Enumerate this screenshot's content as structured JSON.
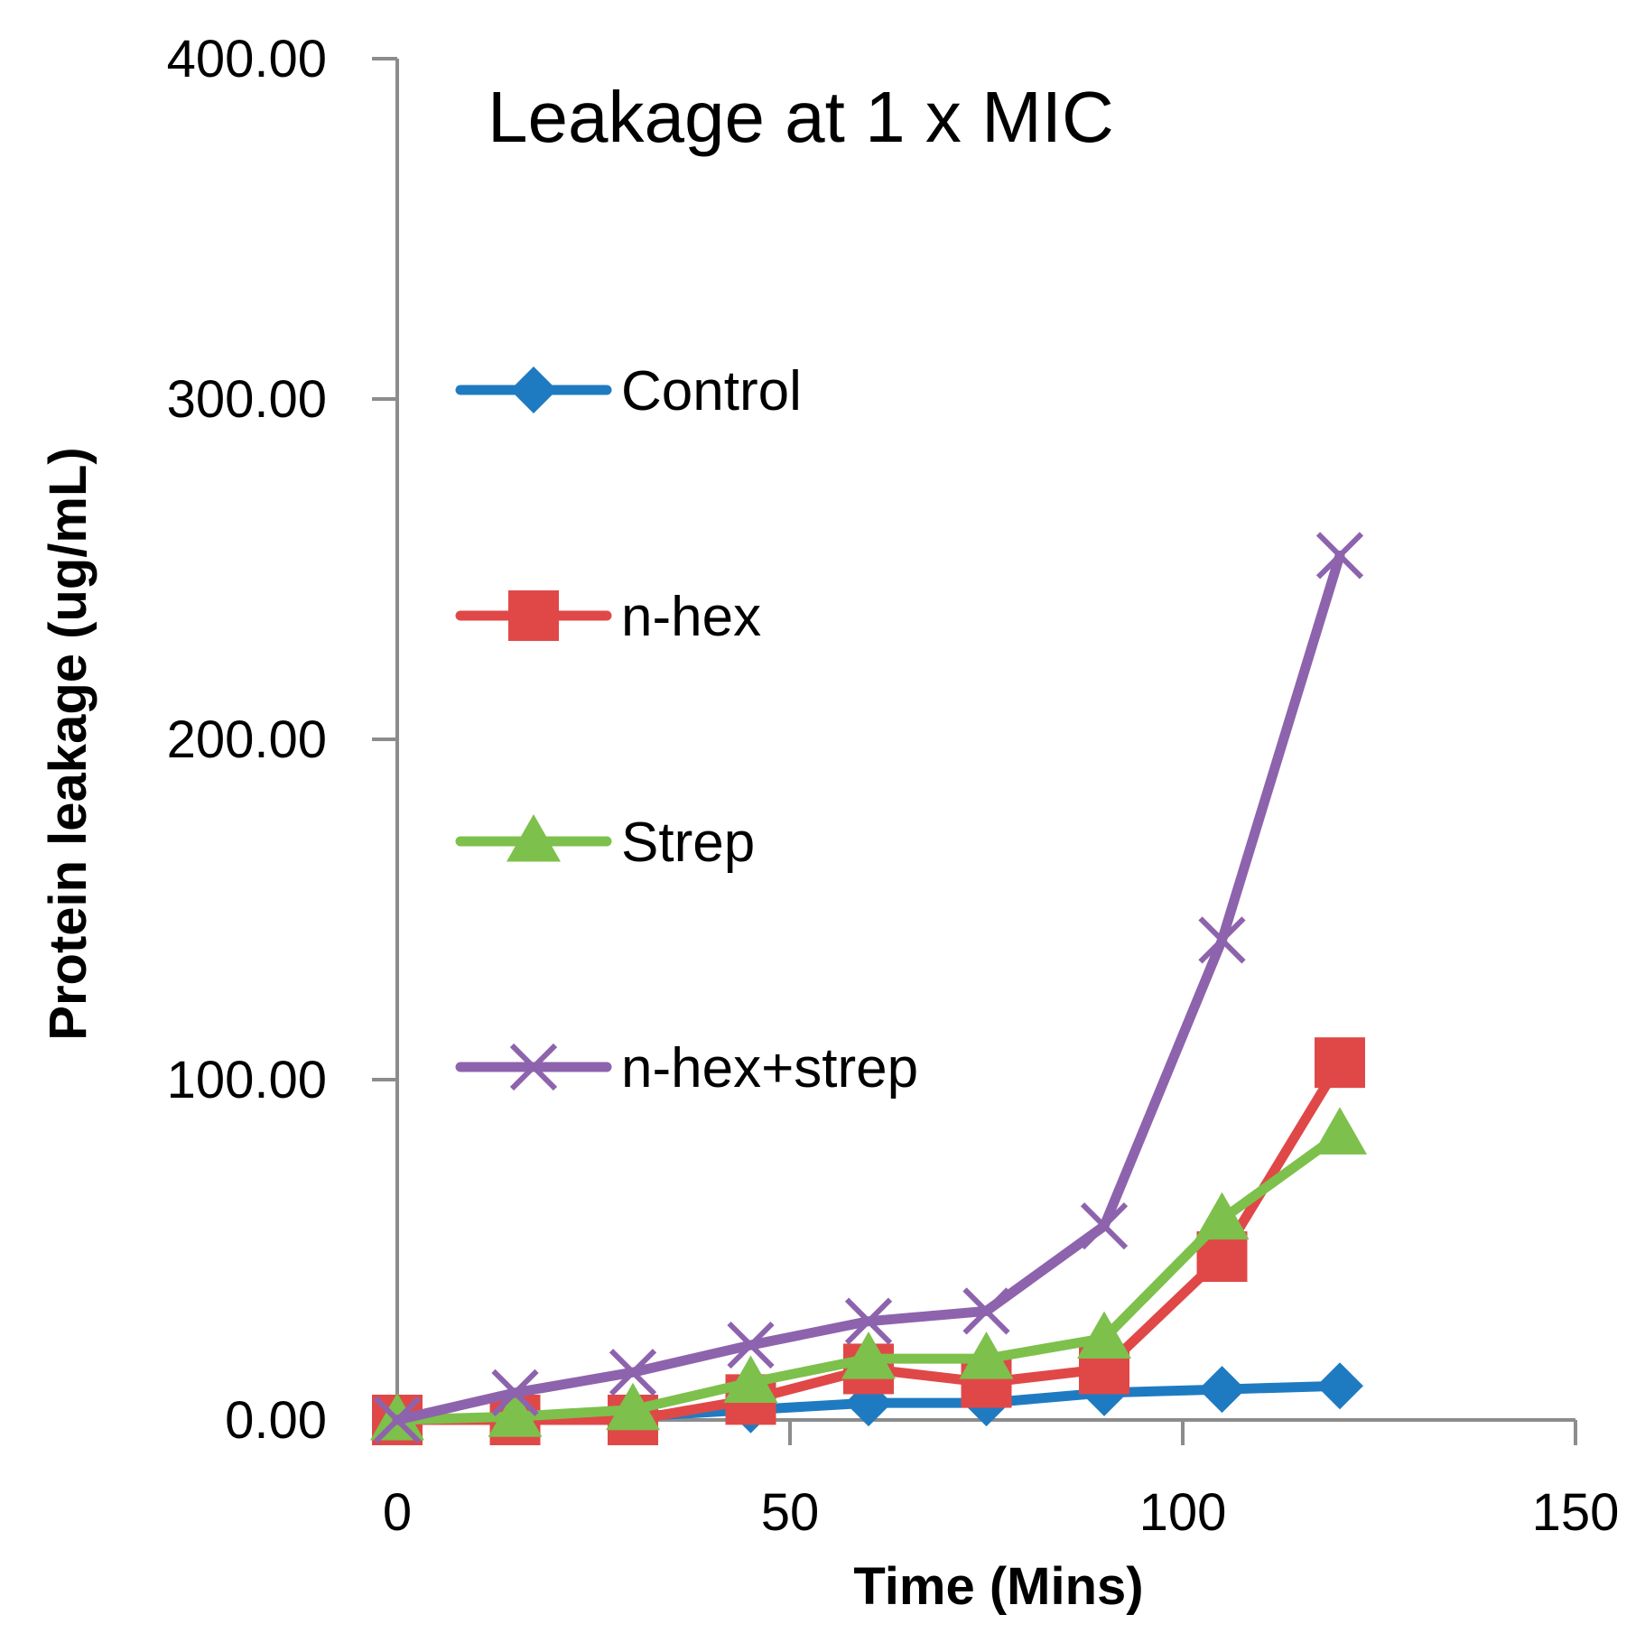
{
  "chart_data": {
    "type": "line",
    "title": "Leakage at 1 x MIC",
    "xlabel": "Time (Mins)",
    "ylabel": "Protein leakage (ug/mL)",
    "xlim": [
      0,
      150
    ],
    "ylim": [
      0,
      400
    ],
    "x_ticks": [
      0,
      50,
      100,
      150
    ],
    "x_tick_labels": [
      "0",
      "50",
      "100",
      "150"
    ],
    "y_ticks": [
      0,
      100,
      200,
      300,
      400
    ],
    "y_tick_labels": [
      "0.00",
      "100.00",
      "200.00",
      "300.00",
      "400.00"
    ],
    "grid": false,
    "legend_position": "left-inside",
    "series": [
      {
        "name": "Control",
        "color": "#1f7bc1",
        "marker": "diamond",
        "x": [
          0,
          15,
          30,
          45,
          60,
          75,
          90,
          105,
          120
        ],
        "y": [
          0,
          0,
          1,
          3,
          5,
          5,
          8,
          9,
          10
        ]
      },
      {
        "name": "n-hex",
        "color": "#e04848",
        "marker": "square",
        "x": [
          0,
          15,
          30,
          45,
          60,
          75,
          90,
          105,
          120
        ],
        "y": [
          0,
          0,
          0,
          6,
          15,
          11,
          15,
          48,
          105
        ]
      },
      {
        "name": "Strep",
        "color": "#7dc04b",
        "marker": "triangle",
        "x": [
          0,
          15,
          30,
          45,
          60,
          75,
          90,
          105,
          120
        ],
        "y": [
          0,
          1,
          3,
          11,
          18,
          18,
          24,
          59,
          84
        ]
      },
      {
        "name": "n-hex+strep",
        "color": "#8e63ad",
        "marker": "x",
        "x": [
          0,
          15,
          30,
          45,
          60,
          75,
          90,
          105,
          120
        ],
        "y": [
          0,
          8,
          14,
          22,
          29,
          32,
          57,
          141,
          254
        ]
      }
    ]
  }
}
